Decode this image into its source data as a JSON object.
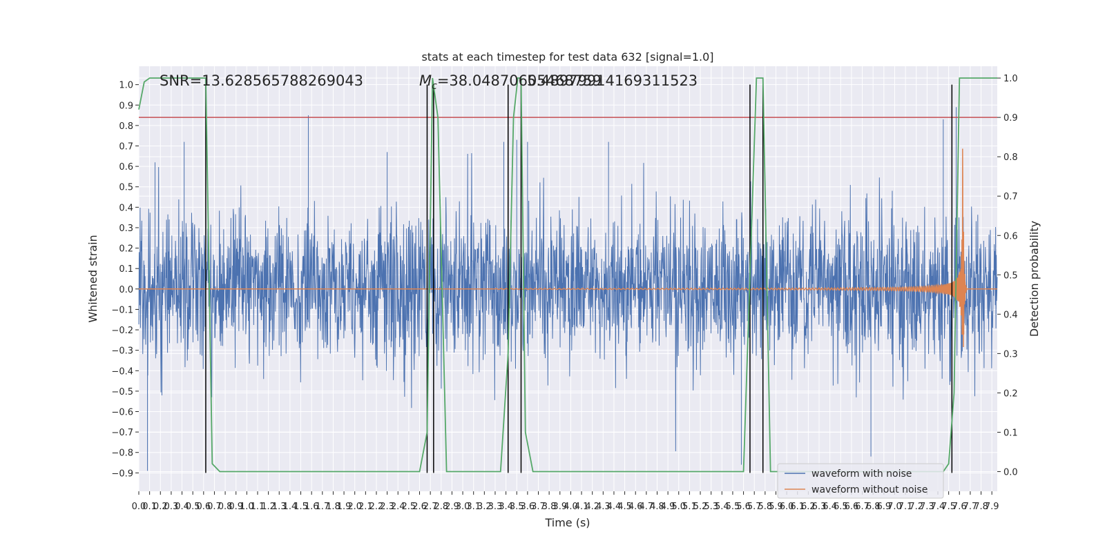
{
  "chart_data": {
    "type": "line",
    "title": "stats at each timestep for test data 632 [signal=1.0]",
    "xlabel": "Time (s)",
    "ylabel": "Whitened strain",
    "ylabel_right": "Detection probability",
    "xlim": [
      0.0,
      7.95
    ],
    "ylim": [
      -0.99,
      1.09
    ],
    "ylim_right": [
      -0.05,
      1.03
    ],
    "x_ticks": [
      "0.0",
      "0.1",
      "0.2",
      "0.3",
      "0.4",
      "0.5",
      "0.6",
      "0.7",
      "0.8",
      "0.9",
      "1.0",
      "1.1",
      "1.2",
      "1.3",
      "1.4",
      "1.5",
      "1.6",
      "1.7",
      "1.8",
      "1.9",
      "2.0",
      "2.1",
      "2.2",
      "2.3",
      "2.4",
      "2.5",
      "2.6",
      "2.7",
      "2.8",
      "2.9",
      "3.0",
      "3.1",
      "3.2",
      "3.3",
      "3.4",
      "3.5",
      "3.6",
      "3.7",
      "3.8",
      "3.9",
      "4.0",
      "4.1",
      "4.2",
      "4.3",
      "4.4",
      "4.5",
      "4.6",
      "4.7",
      "4.8",
      "4.9",
      "5.0",
      "5.1",
      "5.2",
      "5.3",
      "5.4",
      "5.5",
      "5.6",
      "5.7",
      "5.8",
      "5.9",
      "6.0",
      "6.1",
      "6.2",
      "6.3",
      "6.4",
      "6.5",
      "6.6",
      "6.7",
      "6.8",
      "6.9",
      "7.0",
      "7.1",
      "7.2",
      "7.3",
      "7.4",
      "7.5",
      "7.6",
      "7.7",
      "7.8",
      "7.9"
    ],
    "y_ticks": [
      "-0.9",
      "-0.8",
      "-0.7",
      "-0.6",
      "-0.5",
      "-0.4",
      "-0.3",
      "-0.2",
      "-0.1",
      "0.0",
      "0.1",
      "0.2",
      "0.3",
      "0.4",
      "0.5",
      "0.6",
      "0.7",
      "0.8",
      "0.9",
      "1.0"
    ],
    "y_ticks_right": [
      "0.0",
      "0.1",
      "0.2",
      "0.3",
      "0.4",
      "0.5",
      "0.6",
      "0.7",
      "0.8",
      "0.9",
      "1.0"
    ],
    "annotations": {
      "snr": "SNR=13.628565788269043",
      "mc": "M",
      "mc_sub": "c",
      "mc_value": "=38.04870605468759",
      "mc_overlap": "5.48979914169311523"
    },
    "threshold": {
      "value": 0.9,
      "axis": "right",
      "color": "#c44e52"
    },
    "event_lines_x": [
      0.62,
      2.67,
      2.73,
      3.42,
      3.54,
      5.66,
      5.78,
      7.53
    ],
    "event_line_range": [
      -0.9,
      1.0
    ],
    "series": [
      {
        "name": "waveform with noise",
        "color": "#4c72b0",
        "axis": "left",
        "noise_sigma": 0.18,
        "peak_x": [
          0.08,
          0.15,
          0.42,
          1.57,
          2.3,
          3.38,
          3.5,
          3.6,
          4.35,
          5.58,
          6.78,
          7.45,
          7.57
        ],
        "peak_y": [
          -0.89,
          0.62,
          0.72,
          0.85,
          0.67,
          0.72,
          0.73,
          0.72,
          0.72,
          -0.86,
          -0.82,
          0.83,
          0.89
        ]
      },
      {
        "name": "waveform without noise",
        "color": "#dd8452",
        "axis": "left",
        "chirp_start": 3.3,
        "chirp_merger": 7.63,
        "amplitude_start": 0.002,
        "amplitude_peak": 0.78
      },
      {
        "name": "detection probability",
        "color": "#55a868",
        "axis": "right",
        "x": [
          0.0,
          0.05,
          0.1,
          0.15,
          0.2,
          0.6,
          0.62,
          0.68,
          0.75,
          0.8,
          2.6,
          2.67,
          2.72,
          2.77,
          2.85,
          2.9,
          3.35,
          3.42,
          3.47,
          3.51,
          3.54,
          3.58,
          3.65,
          5.6,
          5.66,
          5.72,
          5.78,
          5.85,
          7.45,
          7.5,
          7.55,
          7.6,
          7.68,
          7.95
        ],
        "y": [
          0.92,
          0.99,
          1.0,
          1.0,
          1.0,
          1.0,
          1.0,
          0.02,
          0.0,
          0.0,
          0.0,
          0.1,
          1.0,
          0.9,
          0.0,
          0.0,
          0.0,
          0.3,
          0.9,
          1.0,
          1.0,
          0.1,
          0.0,
          0.0,
          0.5,
          1.0,
          1.0,
          0.0,
          0.0,
          0.02,
          0.2,
          1.0,
          1.0,
          1.0
        ]
      }
    ],
    "legend": {
      "placement": "lower-right",
      "entries": [
        {
          "label": "waveform with noise",
          "color": "#4c72b0"
        },
        {
          "label": "waveform without noise",
          "color": "#dd8452"
        }
      ]
    },
    "grid": true,
    "style": {
      "plot_background": "#eaeaf2",
      "grid_color": "#ffffff",
      "event_line_color": "#000000"
    }
  }
}
